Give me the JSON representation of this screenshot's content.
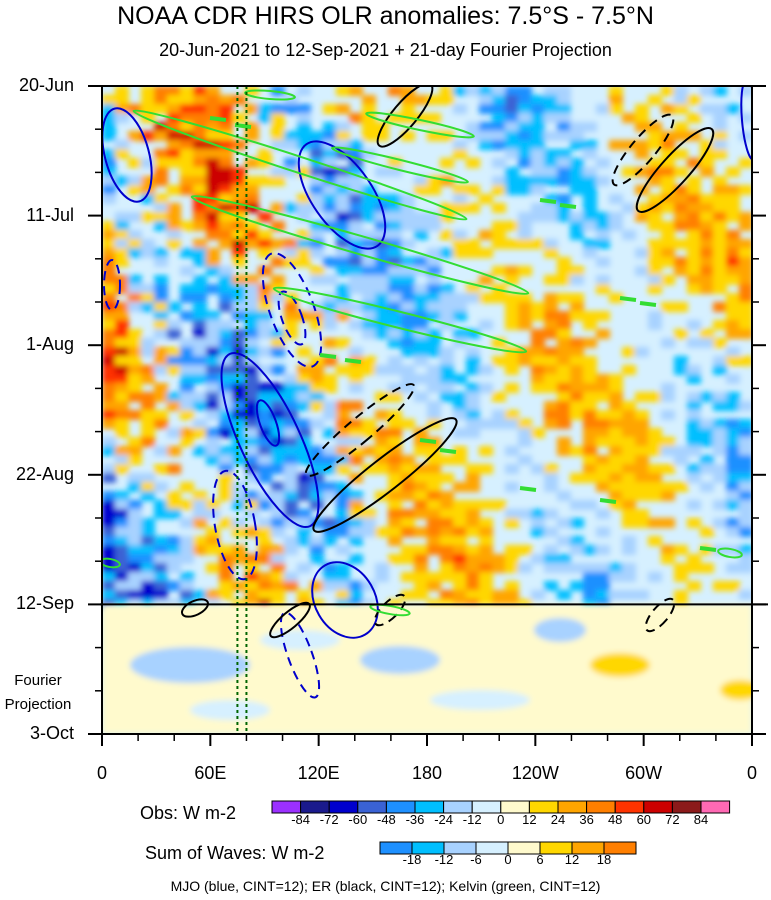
{
  "title": "NOAA CDR HIRS OLR anomalies: 7.5°S - 7.5°N",
  "subtitle": "20-Jun-2021 to 12-Sep-2021 + 21-day Fourier Projection",
  "footer": "MJO (blue, CINT=12); ER (black, CINT=12); Kelvin (green, CINT=12)",
  "chart_data": {
    "type": "heatmap",
    "plot": "time-longitude Hovmoller",
    "x_axis": {
      "range_deg_east": [
        0,
        360
      ],
      "ticks": [
        {
          "lon": 0,
          "label": "0"
        },
        {
          "lon": 60,
          "label": "60E"
        },
        {
          "lon": 120,
          "label": "120E"
        },
        {
          "lon": 180,
          "label": "180"
        },
        {
          "lon": 240,
          "label": "120W"
        },
        {
          "lon": 300,
          "label": "60W"
        },
        {
          "lon": 360,
          "label": "0"
        }
      ]
    },
    "y_axis": {
      "range_days": [
        0,
        105
      ],
      "ticks": [
        {
          "day": 0,
          "label": "20-Jun"
        },
        {
          "day": 21,
          "label": "11-Jul"
        },
        {
          "day": 42,
          "label": "1-Aug"
        },
        {
          "day": 63,
          "label": "22-Aug"
        },
        {
          "day": 84,
          "label": "12-Sep"
        },
        {
          "day": 105,
          "label": "3-Oct"
        }
      ]
    },
    "projection_start_day": 84,
    "projection_label": [
      "Fourier",
      "Projection"
    ],
    "reference_lines_lon": [
      75,
      80
    ],
    "colorbars": [
      {
        "title": "Obs: W m-2",
        "levels": [
          "-84",
          "-72",
          "-60",
          "-48",
          "-36",
          "-24",
          "-12",
          "0",
          "12",
          "24",
          "36",
          "48",
          "60",
          "72",
          "84"
        ],
        "colors": [
          "#9b30ff",
          "#1a1a8c",
          "#0000cd",
          "#3a62d4",
          "#1e90ff",
          "#00bfff",
          "#a8d2ff",
          "#d6f0ff",
          "#fffacd",
          "#ffd700",
          "#ffa500",
          "#ff7f00",
          "#ff3300",
          "#cc0000",
          "#8b1a1a",
          "#ff69b4"
        ]
      },
      {
        "title": "Sum of Waves: W m-2",
        "levels": [
          "-18",
          "-12",
          "-6",
          "0",
          "6",
          "12",
          "18"
        ],
        "colors": [
          "#1e90ff",
          "#00bfff",
          "#a8d2ff",
          "#d6f0ff",
          "#fffacd",
          "#ffd700",
          "#ffa500",
          "#ff7f00"
        ]
      }
    ],
    "contour_colors": {
      "mjo": "#0000cc",
      "er": "#000000",
      "kelvin": "#33dd33"
    }
  }
}
